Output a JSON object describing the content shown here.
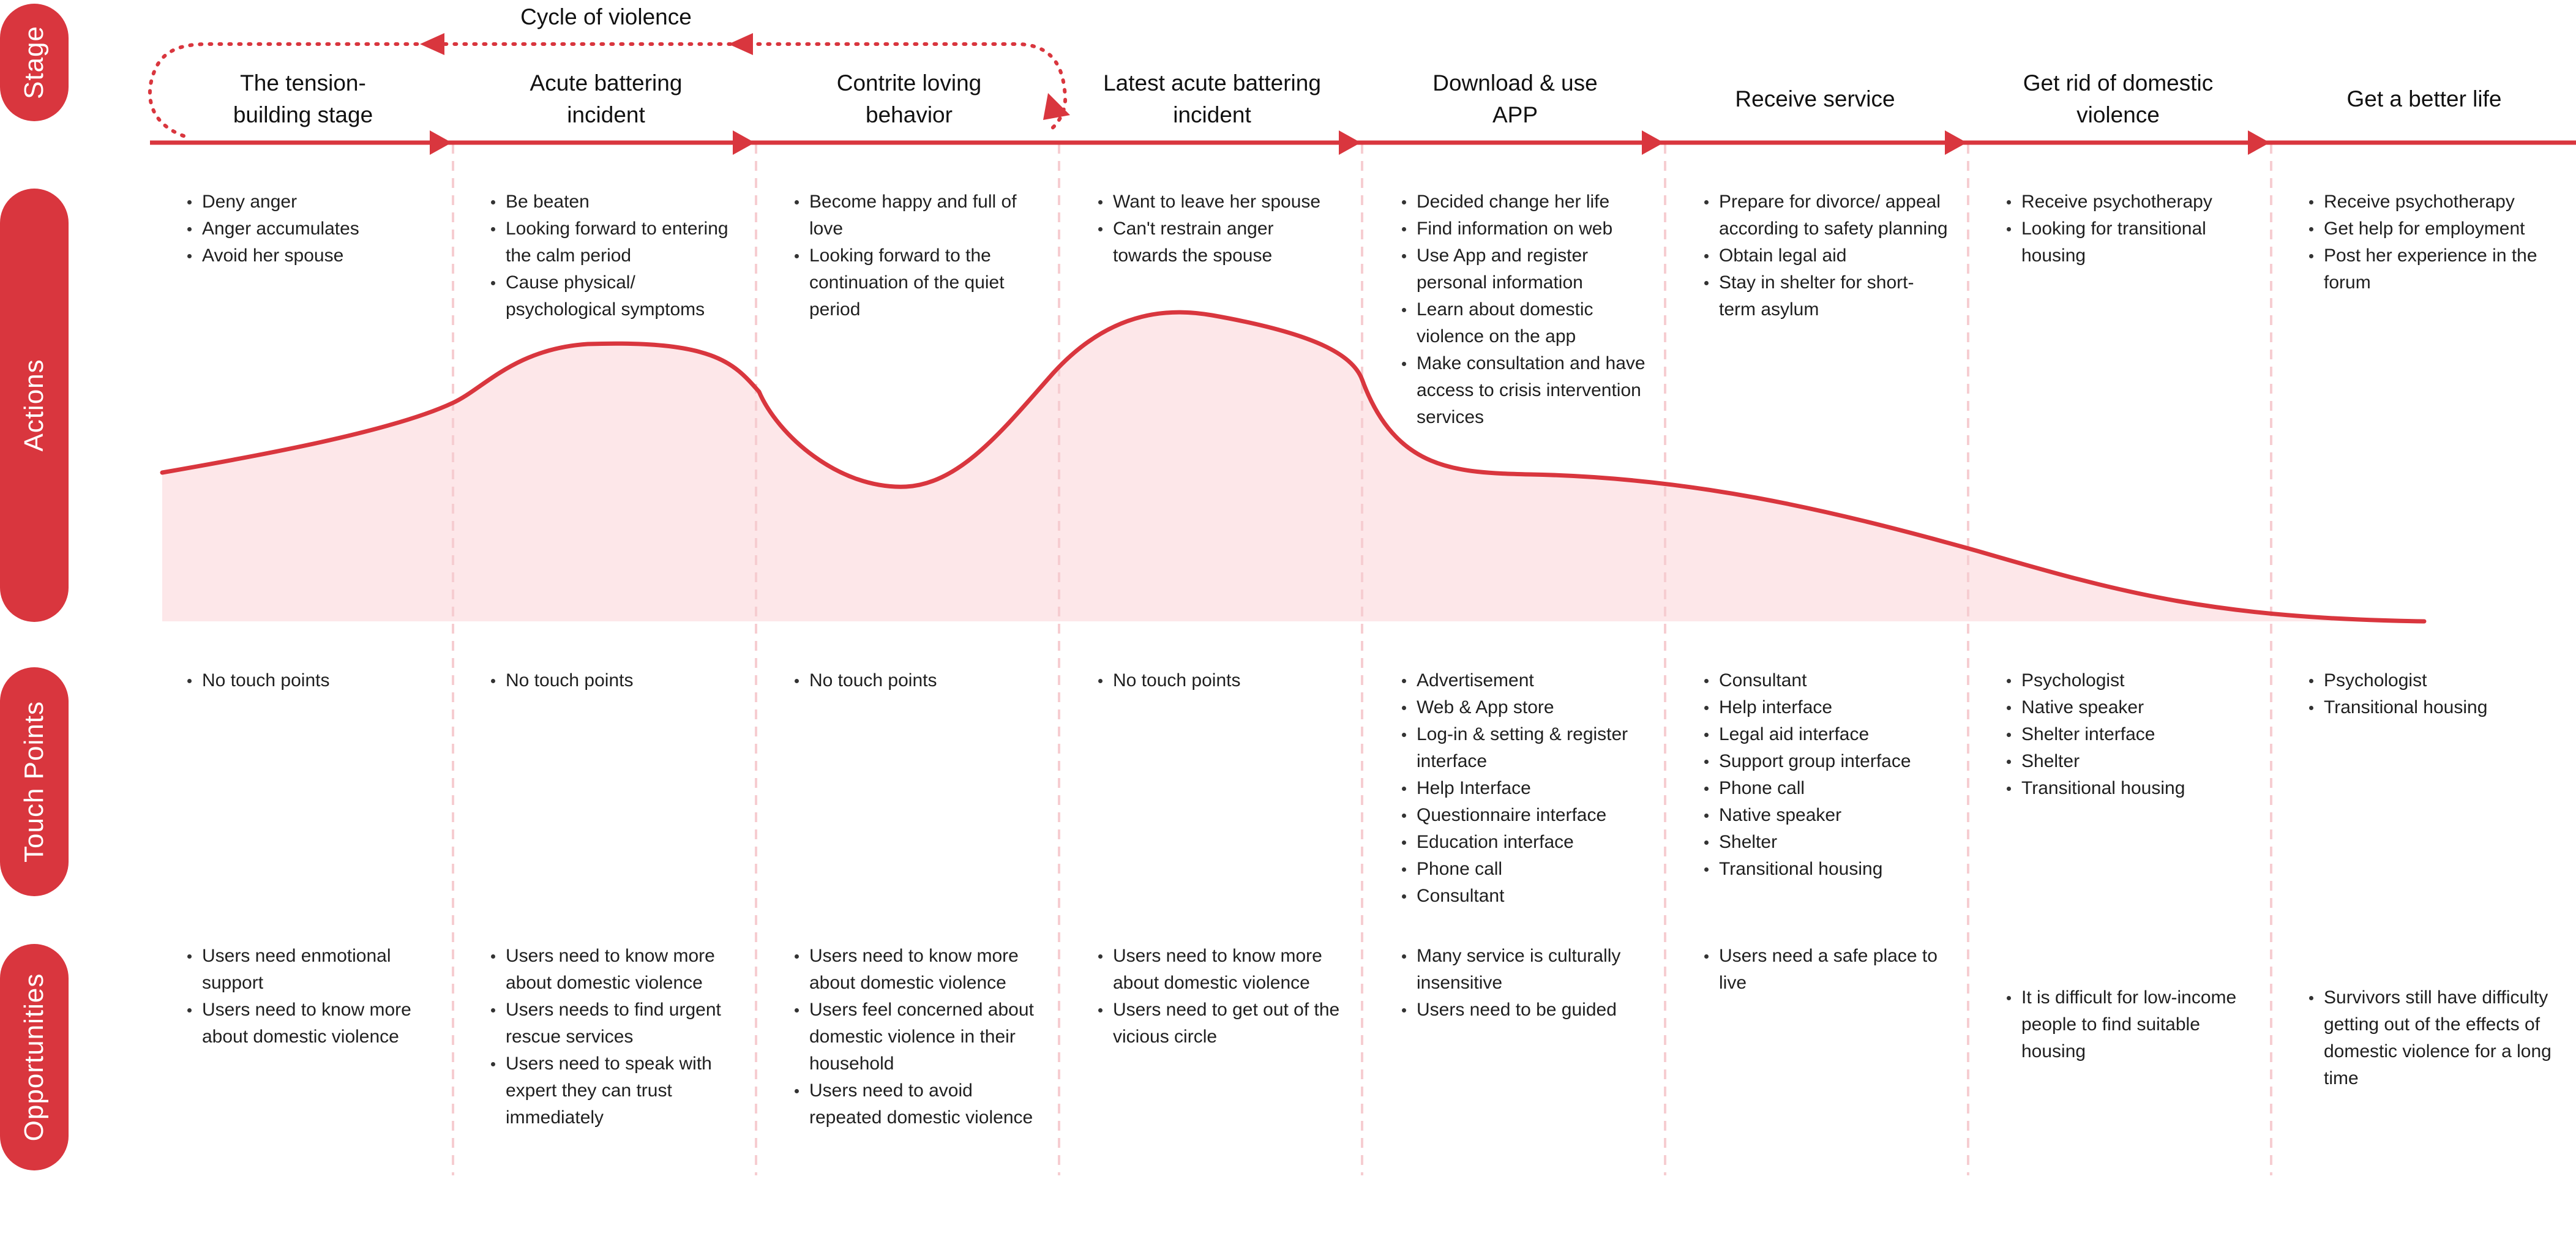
{
  "rows": {
    "stage": "Stage",
    "actions": "Actions",
    "touch_points": "Touch Points",
    "opportunities": "Opportunities"
  },
  "cycle_label": "Cycle of violence",
  "colors": {
    "accent": "#d9363e",
    "curve_fill": "#fde7e9",
    "divider": "#f6cdd1"
  },
  "stages": [
    {
      "title": "The tension-building stage",
      "actions": [
        "Deny anger",
        "Anger accumulates",
        "Avoid her spouse"
      ],
      "touch_points": [
        "No touch points"
      ],
      "opportunities": [
        "Users need enmotional support",
        "Users need to know more about domestic violence"
      ]
    },
    {
      "title": "Acute battering incident",
      "actions": [
        "Be beaten",
        "Looking forward to entering the calm period",
        "Cause physical/ psychological symptoms"
      ],
      "touch_points": [
        "No touch points"
      ],
      "opportunities": [
        "Users need to know more about domestic violence",
        "Users needs to find urgent rescue services",
        "Users need to speak with expert they can trust immediately"
      ]
    },
    {
      "title": "Contrite loving behavior",
      "actions": [
        "Become happy and full of love",
        "Looking forward to the continuation of the quiet period"
      ],
      "touch_points": [
        "No touch points"
      ],
      "opportunities": [
        "Users need to know more about domestic violence",
        "Users feel concerned about domestic violence in their household",
        "Users need to avoid repeated domestic violence"
      ]
    },
    {
      "title": "Latest acute battering incident",
      "actions": [
        "Want to leave her spouse",
        "Can't restrain anger towards the spouse"
      ],
      "touch_points": [
        "No touch points"
      ],
      "opportunities": [
        "Users need to know more about domestic violence",
        "Users need to get out of the vicious circle"
      ]
    },
    {
      "title": "Download & use APP",
      "actions": [
        "Decided change her life",
        "Find information on web",
        "Use App and register personal information",
        "Learn about domestic violence on the app",
        "Make consultation and have access to crisis intervention services"
      ],
      "touch_points": [
        "Advertisement",
        "Web & App store",
        "Log-in & setting & register interface",
        "Help Interface",
        "Questionnaire interface",
        "Education interface",
        "Phone call",
        "Consultant"
      ],
      "opportunities": [
        "Many service is culturally insensitive",
        "Users need to be guided"
      ]
    },
    {
      "title": "Receive service",
      "actions": [
        "Prepare for divorce/ appeal according to safety planning",
        "Obtain legal aid",
        "Stay in shelter for short-term asylum"
      ],
      "touch_points": [
        "Consultant",
        "Help interface",
        "Legal aid interface",
        "Support group interface",
        "Phone call",
        "Native speaker",
        "Shelter",
        "Transitional housing"
      ],
      "opportunities": [
        "Users need a safe place to live"
      ]
    },
    {
      "title": "Get rid of domestic violence",
      "actions": [
        "Receive psychotherapy",
        "Looking for transitional housing"
      ],
      "touch_points": [
        "Psychologist",
        "Native speaker",
        "Shelter interface",
        "Shelter",
        "Transitional housing"
      ],
      "opportunities": [
        "It is difficult for low-income people to find suitable housing"
      ]
    },
    {
      "title": "Get a better life",
      "actions": [
        "Receive psychotherapy",
        "Get help for employment",
        "Post her experience in the forum"
      ],
      "touch_points": [
        "Psychologist",
        "Transitional housing"
      ],
      "opportunities": [
        "Survivors still have difficulty getting out of the effects of domestic violence for a long time"
      ]
    }
  ]
}
